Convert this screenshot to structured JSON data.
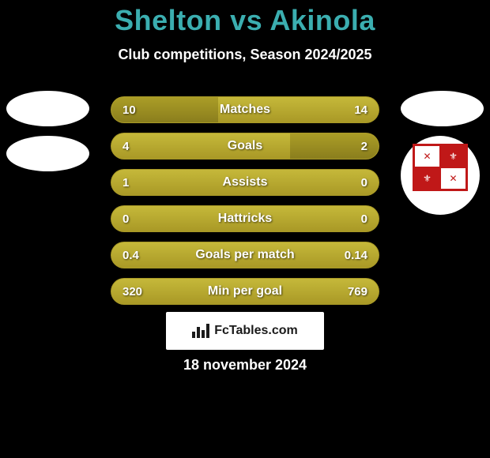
{
  "header": {
    "title_left": "Shelton",
    "title_vs": "vs",
    "title_right": "Akinola",
    "subtitle": "Club competitions, Season 2024/2025"
  },
  "colors": {
    "background": "#000000",
    "title_color": "#3baeb0",
    "bar_base": "#a99926",
    "bar_fill": "#8a7e1d",
    "text_white": "#ffffff",
    "shield_red": "#c01818"
  },
  "stats": [
    {
      "label": "Matches",
      "left_value": "10",
      "right_value": "14",
      "left_pct": 40,
      "right_pct": 0
    },
    {
      "label": "Goals",
      "left_value": "4",
      "right_value": "2",
      "left_pct": 0,
      "right_pct": 33
    },
    {
      "label": "Assists",
      "left_value": "1",
      "right_value": "0",
      "left_pct": 0,
      "right_pct": 0
    },
    {
      "label": "Hattricks",
      "left_value": "0",
      "right_value": "0",
      "left_pct": 0,
      "right_pct": 0
    },
    {
      "label": "Goals per match",
      "left_value": "0.4",
      "right_value": "0.14",
      "left_pct": 0,
      "right_pct": 0
    },
    {
      "label": "Min per goal",
      "left_value": "320",
      "right_value": "769",
      "left_pct": 0,
      "right_pct": 0
    }
  ],
  "footer": {
    "brand": "FcTables.com",
    "date": "18 november 2024"
  }
}
